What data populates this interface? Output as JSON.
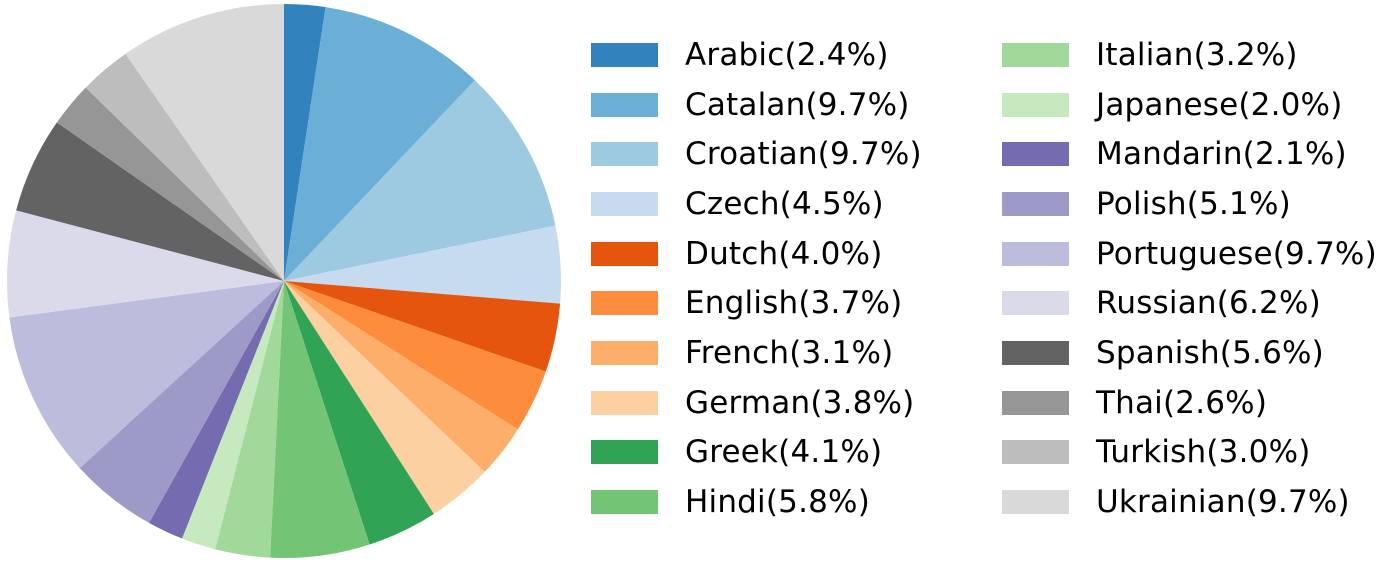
{
  "chart_data": {
    "type": "pie",
    "title": "",
    "start_angle_deg": 90,
    "direction": "clockwise",
    "legend_position": "right",
    "categories": [
      "Arabic",
      "Catalan",
      "Croatian",
      "Czech",
      "Dutch",
      "English",
      "French",
      "German",
      "Greek",
      "Hindi",
      "Italian",
      "Japanese",
      "Mandarin",
      "Polish",
      "Portuguese",
      "Russian",
      "Spanish",
      "Thai",
      "Turkish",
      "Ukrainian"
    ],
    "values": [
      2.4,
      9.7,
      9.7,
      4.5,
      4.0,
      3.7,
      3.1,
      3.8,
      4.1,
      5.8,
      3.2,
      2.0,
      2.1,
      5.1,
      9.7,
      6.2,
      5.6,
      2.6,
      3.0,
      9.7
    ],
    "colors": [
      "#3182bd",
      "#6baed6",
      "#9ecae1",
      "#c6dbef",
      "#e6550d",
      "#fd8d3c",
      "#fdae6b",
      "#fdd0a2",
      "#31a354",
      "#74c476",
      "#a1d99b",
      "#c7e9c0",
      "#756bb1",
      "#9e9ac8",
      "#bcbddc",
      "#dadaeb",
      "#636363",
      "#969696",
      "#bdbdbd",
      "#d9d9d9"
    ]
  },
  "legend": {
    "column1": [
      {
        "label": "Arabic(2.4%)",
        "color": "#3182bd"
      },
      {
        "label": "Catalan(9.7%)",
        "color": "#6baed6"
      },
      {
        "label": "Croatian(9.7%)",
        "color": "#9ecae1"
      },
      {
        "label": "Czech(4.5%)",
        "color": "#c6dbef"
      },
      {
        "label": "Dutch(4.0%)",
        "color": "#e6550d"
      },
      {
        "label": "English(3.7%)",
        "color": "#fd8d3c"
      },
      {
        "label": "French(3.1%)",
        "color": "#fdae6b"
      },
      {
        "label": "German(3.8%)",
        "color": "#fdd0a2"
      },
      {
        "label": "Greek(4.1%)",
        "color": "#31a354"
      },
      {
        "label": "Hindi(5.8%)",
        "color": "#74c476"
      }
    ],
    "column2": [
      {
        "label": "Italian(3.2%)",
        "color": "#a1d99b"
      },
      {
        "label": "Japanese(2.0%)",
        "color": "#c7e9c0"
      },
      {
        "label": "Mandarin(2.1%)",
        "color": "#756bb1"
      },
      {
        "label": "Polish(5.1%)",
        "color": "#9e9ac8"
      },
      {
        "label": "Portuguese(9.7%)",
        "color": "#bcbddc"
      },
      {
        "label": "Russian(6.2%)",
        "color": "#dadaeb"
      },
      {
        "label": "Spanish(5.6%)",
        "color": "#636363"
      },
      {
        "label": "Thai(2.6%)",
        "color": "#969696"
      },
      {
        "label": "Turkish(3.0%)",
        "color": "#bdbdbd"
      },
      {
        "label": "Ukrainian(9.7%)",
        "color": "#d9d9d9"
      }
    ]
  }
}
